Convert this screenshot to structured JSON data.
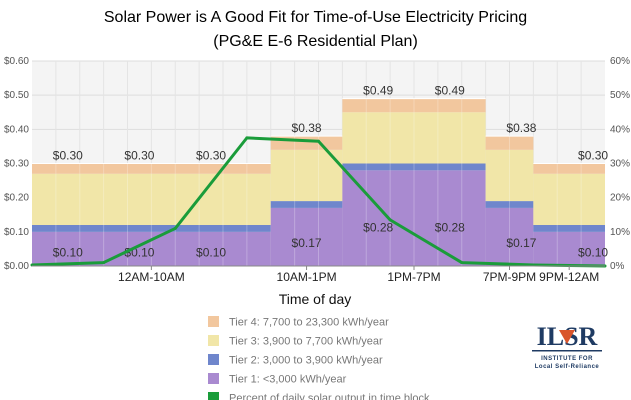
{
  "chart_data": {
    "type": "bar",
    "title": "Solar Power is A Good Fit for Time-of-Use Electricity Pricing",
    "subtitle": "(PG&E E-6 Residential Plan)",
    "xlabel": "Time of day",
    "y_left": {
      "ylim": [
        0,
        0.6
      ],
      "ticks": [
        "$0.00",
        "$0.10",
        "$0.20",
        "$0.30",
        "$0.40",
        "$0.50",
        "$0.60"
      ]
    },
    "y_right": {
      "ylim": [
        0,
        60
      ],
      "ticks": [
        "0%",
        "10%",
        "20%",
        "30%",
        "40%",
        "50%",
        "60%"
      ]
    },
    "grid": true,
    "blocks": [
      {
        "start": 0,
        "end": 10,
        "tier1": 0.1,
        "tier2": 0.12,
        "tier3": 0.27,
        "tier4": 0.3,
        "low_label": "$0.10",
        "top_label": "$0.30"
      },
      {
        "start": 10,
        "end": 13,
        "tier1": 0.17,
        "tier2": 0.19,
        "tier3": 0.34,
        "tier4": 0.38,
        "low_label": "$0.17",
        "top_label": "$0.38"
      },
      {
        "start": 13,
        "end": 19,
        "tier1": 0.28,
        "tier2": 0.3,
        "tier3": 0.45,
        "tier4": 0.49,
        "low_label": "$0.28",
        "top_label": "$0.49"
      },
      {
        "start": 19,
        "end": 21,
        "tier1": 0.17,
        "tier2": 0.19,
        "tier3": 0.34,
        "tier4": 0.38,
        "low_label": "$0.17",
        "top_label": "$0.38"
      },
      {
        "start": 21,
        "end": 24,
        "tier1": 0.1,
        "tier2": 0.12,
        "tier3": 0.27,
        "tier4": 0.3,
        "low_label": "$0.10",
        "top_label": "$0.30"
      }
    ],
    "price_label_columns": [
      1.5,
      4.5,
      7.5,
      11.5,
      14.5,
      17.5,
      20.5,
      23.5
    ],
    "x_ticks": [
      {
        "x": 5,
        "label": "12AM-10AM"
      },
      {
        "x": 11.5,
        "label": "10AM-1PM"
      },
      {
        "x": 16,
        "label": "1PM-7PM"
      },
      {
        "x": 20,
        "label": "7PM-9PM"
      },
      {
        "x": 22.5,
        "label": "9PM-12AM"
      }
    ],
    "solar_series": {
      "name": "Percent of daily solar output in time block",
      "x": [
        0,
        3,
        6,
        9,
        12,
        15,
        18,
        21,
        24
      ],
      "y": [
        0.3,
        1,
        11,
        37.5,
        36.5,
        13.5,
        1,
        0.3,
        0
      ]
    },
    "legend": [
      {
        "key": "tier4",
        "label": "Tier 4: 7,700 to 23,300 kWh/year",
        "color": "#f2c79e"
      },
      {
        "key": "tier3",
        "label": "Tier 3: 3,900 to 7,700 kWh/year",
        "color": "#f1e6a8"
      },
      {
        "key": "tier2",
        "label": "Tier 2: 3,000 to 3,900 kWh/year",
        "color": "#6f86cc"
      },
      {
        "key": "tier1",
        "label": "Tier 1: <3,000 kWh/year",
        "color": "#a98ad0"
      },
      {
        "key": "solar",
        "label": "Percent of daily solar output in time block",
        "color": "#1a9c3a"
      }
    ],
    "colors": {
      "tier1": "#a98ad0",
      "tier2": "#6f86cc",
      "tier3": "#f1e6a8",
      "tier4": "#f2c79e",
      "solar": "#1a9c3a"
    }
  },
  "logo": {
    "big": "ILSR",
    "line1": "INSTITUTE FOR",
    "line2": "Local Self-Reliance",
    "color": "#1f3b63",
    "accent": "#d9552b"
  }
}
